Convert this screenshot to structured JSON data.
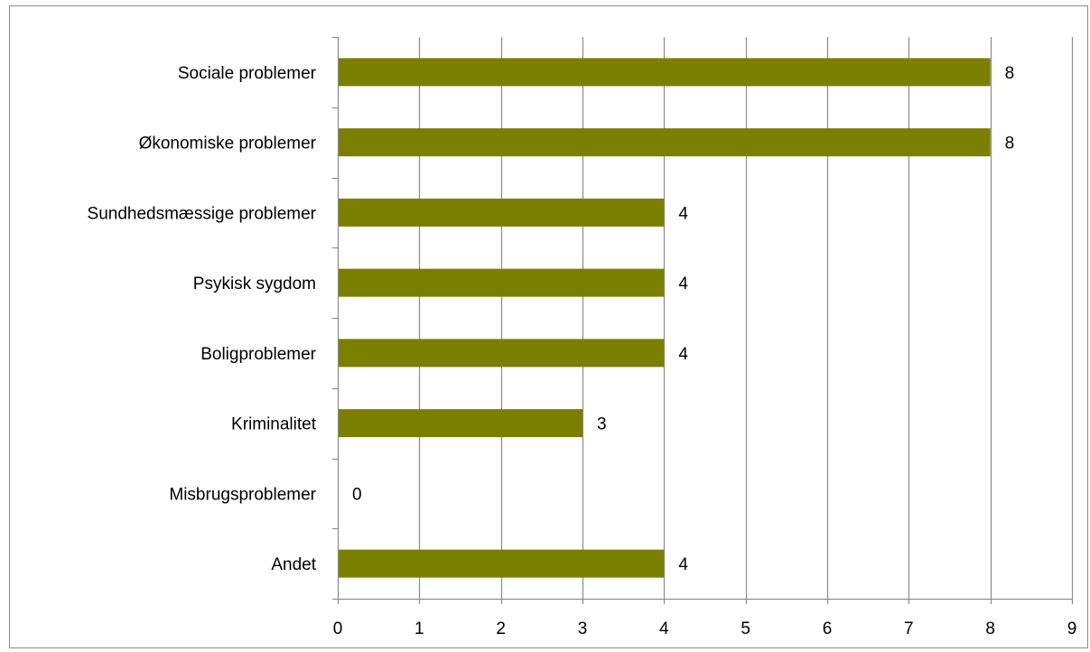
{
  "chart_data": {
    "type": "bar",
    "orientation": "horizontal",
    "categories": [
      "Sociale problemer",
      "Økonomiske problemer",
      "Sundhedsmæssige problemer",
      "Psykisk sygdom",
      "Boligproblemer",
      "Kriminalitet",
      "Misbrugsproblemer",
      "Andet"
    ],
    "values": [
      8,
      8,
      4,
      4,
      4,
      3,
      0,
      4
    ],
    "data_labels": [
      "8",
      "8",
      "4",
      "4",
      "4",
      "3",
      "0",
      "4"
    ],
    "x_ticks": [
      "0",
      "1",
      "2",
      "3",
      "4",
      "5",
      "6",
      "7",
      "8",
      "9"
    ],
    "xlim": [
      0,
      9
    ],
    "grid": "vertical",
    "legend": "none",
    "bar_color": "#7a7f00",
    "grid_color": "#8c8c8c"
  }
}
